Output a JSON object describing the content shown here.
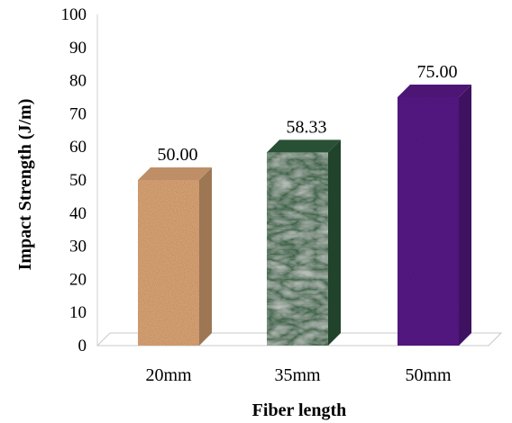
{
  "chart_data": {
    "type": "bar",
    "title": "",
    "xlabel": "Fiber length",
    "ylabel": "Impact Strength (J/m)",
    "ylim": [
      0,
      100
    ],
    "y_ticks": [
      "0",
      "10",
      "20",
      "30",
      "40",
      "50",
      "60",
      "70",
      "80",
      "90",
      "100"
    ],
    "categories": [
      "20mm",
      "35mm",
      "50mm"
    ],
    "values": [
      50.0,
      58.33,
      75.0
    ],
    "value_labels": [
      "50.00",
      "58.33",
      "75.00"
    ],
    "bar_colors": [
      "#e0a878",
      "#2f5e3e",
      "#5a1a8a"
    ],
    "grid": false,
    "legend": "none",
    "style": "3d-textured-columns"
  }
}
